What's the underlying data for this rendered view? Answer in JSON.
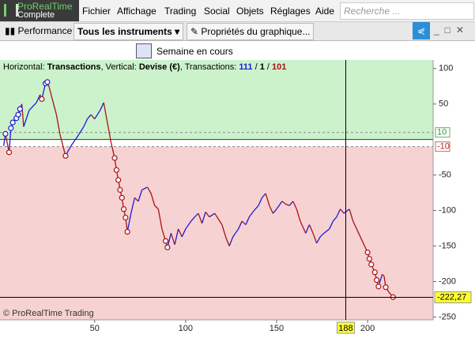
{
  "app": {
    "logo": "ProRealTime",
    "edition": "Complete",
    "menu": [
      "Fichier",
      "Affichage",
      "Trading",
      "Social",
      "Objets",
      "Réglages",
      "Aide"
    ],
    "search": "Recherche ..."
  },
  "toolbar": {
    "performance": "Performance",
    "instruments": "Tous les instruments",
    "properties": "Propriétés du graphique...",
    "period": "Semaine en cours"
  },
  "chart_data": {
    "type": "line",
    "info": {
      "h_label": "Horizontal:",
      "h_value": "Transactions",
      "v_label": ", Vertical:",
      "v_value": "Devise (€)",
      "t_label": ", Transactions:",
      "t_win": "111",
      "sep1": "/",
      "t_flat": "1",
      "sep2": "/",
      "t_loss": "101"
    },
    "watermark": "© ProRealTime Trading",
    "x": [
      0,
      1,
      3,
      4,
      5,
      7,
      8,
      9,
      10,
      11,
      14,
      18,
      20,
      21,
      23,
      24,
      25,
      29,
      31,
      34,
      37,
      40,
      44,
      46,
      48,
      50,
      53,
      55,
      57,
      59,
      61,
      62,
      63,
      64,
      65,
      66,
      67,
      68,
      70,
      72,
      74,
      76,
      79,
      81,
      83,
      85,
      87,
      89,
      90,
      92,
      94,
      96,
      98,
      100,
      103,
      105,
      107,
      109,
      111,
      113,
      116,
      118,
      120,
      122,
      124,
      126,
      129,
      131,
      133,
      135,
      137,
      140,
      142,
      144,
      146,
      148,
      150,
      153,
      155,
      157,
      159,
      161,
      163,
      166,
      168,
      170,
      172,
      174,
      176,
      179,
      181,
      183,
      185,
      187,
      190,
      192,
      194,
      196,
      198,
      200,
      201,
      202,
      204,
      205,
      206,
      208,
      209,
      210,
      212,
      214
    ],
    "values": [
      -9,
      8,
      -18,
      16,
      24,
      30,
      35,
      43,
      50,
      18,
      41,
      52,
      63,
      57,
      79,
      81,
      74,
      35,
      7,
      -23,
      -9,
      2,
      18,
      29,
      35,
      29,
      41,
      52,
      24,
      -4,
      -26,
      -43,
      -57,
      -71,
      -82,
      -98,
      -110,
      -130,
      -104,
      -82,
      -87,
      -71,
      -67,
      -76,
      -93,
      -98,
      -126,
      -143,
      -152,
      -132,
      -148,
      -126,
      -137,
      -126,
      -115,
      -109,
      -104,
      -118,
      -102,
      -109,
      -104,
      -112,
      -120,
      -137,
      -150,
      -137,
      -126,
      -115,
      -120,
      -109,
      -102,
      -93,
      -82,
      -76,
      -93,
      -104,
      -98,
      -87,
      -91,
      -93,
      -87,
      -98,
      -115,
      -132,
      -120,
      -132,
      -146,
      -137,
      -132,
      -126,
      -115,
      -109,
      -98,
      -104,
      -98,
      -115,
      -126,
      -137,
      -148,
      -159,
      -168,
      -176,
      -187,
      -198,
      -207,
      -190,
      -192,
      -208,
      -216,
      -222
    ],
    "markers": [
      1,
      3,
      4,
      5,
      7,
      8,
      9,
      21,
      23,
      24,
      34,
      61,
      62,
      63,
      64,
      65,
      66,
      67,
      68,
      89,
      90,
      200,
      201,
      202,
      204,
      205,
      206,
      210,
      214
    ],
    "rise_color": "#1c1cd8",
    "fall_color": "#a81414",
    "upper_zone_color": "#ccf2cc",
    "lower_zone_color": "#f6d2d2",
    "baseline": 0,
    "thresholds": [
      {
        "value": 10,
        "label": "10"
      },
      {
        "value": -10,
        "label": "-10"
      }
    ],
    "cursor_x": 188,
    "cursor_y": {
      "value": -222.27,
      "label": "-222,27"
    },
    "xlim": [
      -2,
      236
    ],
    "ylim": [
      -254,
      112
    ],
    "xticks": [
      50,
      100,
      150,
      200
    ],
    "yticks": [
      100,
      50,
      -50,
      -100,
      -150,
      -200,
      -250
    ]
  }
}
